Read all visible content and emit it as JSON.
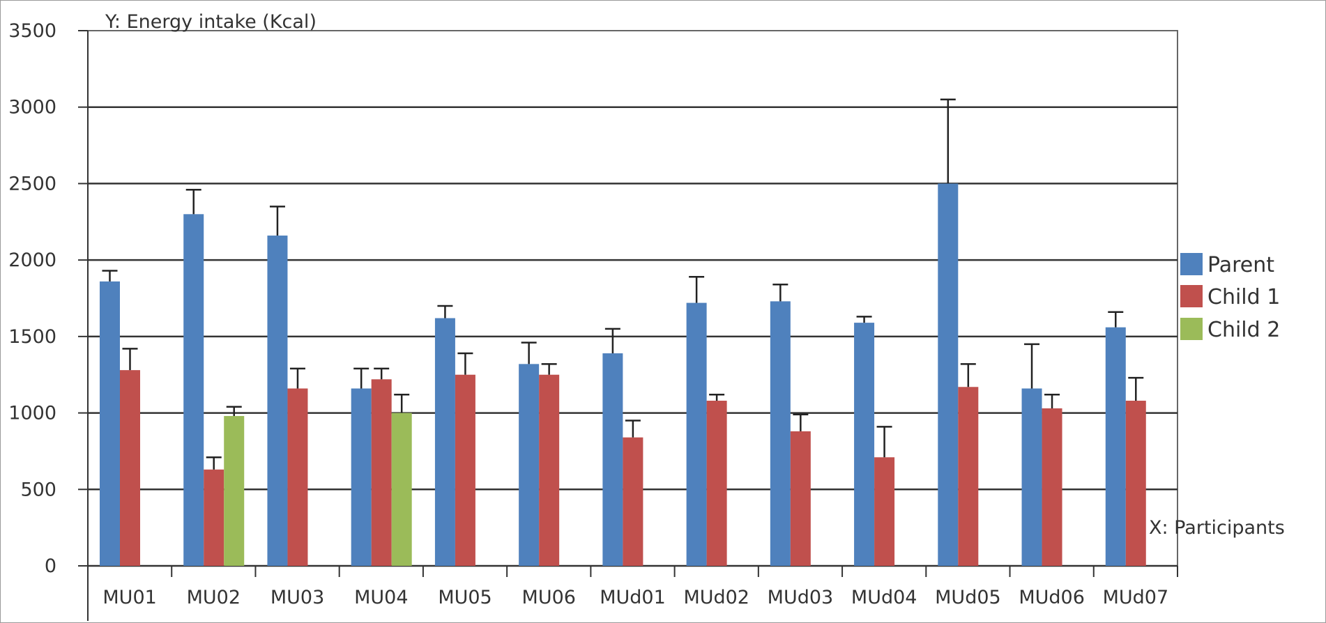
{
  "chart_data": {
    "type": "bar",
    "title": "",
    "ylabel": "Y: Energy intake (Kcal)",
    "xlabel": "X: Participants",
    "ylim": [
      0,
      3500
    ],
    "yticks": [
      0,
      500,
      1000,
      1500,
      2000,
      2500,
      3000,
      3500
    ],
    "grid": true,
    "legend_position": "right",
    "categories": [
      "MU01",
      "MU02",
      "MU03",
      "MU04",
      "MU05",
      "MU06",
      "MUd01",
      "MUd02",
      "MUd03",
      "MUd04",
      "MUd05",
      "MUd06",
      "MUd07"
    ],
    "series": [
      {
        "name": "Parent",
        "color": "#4f81bd",
        "values": [
          1860,
          2300,
          2160,
          1160,
          1620,
          1320,
          1390,
          1720,
          1730,
          1590,
          2500,
          1160,
          1560
        ],
        "errors": [
          70,
          160,
          190,
          130,
          80,
          140,
          160,
          170,
          110,
          40,
          550,
          290,
          100
        ]
      },
      {
        "name": "Child 1",
        "color": "#c0504d",
        "values": [
          1280,
          630,
          1160,
          1220,
          1250,
          1250,
          840,
          1080,
          880,
          710,
          1170,
          1030,
          1080
        ],
        "errors": [
          140,
          80,
          130,
          70,
          140,
          70,
          110,
          40,
          110,
          200,
          150,
          90,
          150
        ]
      },
      {
        "name": "Child 2",
        "color": "#9bbb59",
        "values": [
          null,
          980,
          null,
          1000,
          null,
          null,
          null,
          null,
          null,
          null,
          null,
          null,
          null
        ],
        "errors": [
          null,
          60,
          null,
          120,
          null,
          null,
          null,
          null,
          null,
          null,
          null,
          null,
          null
        ]
      }
    ]
  }
}
